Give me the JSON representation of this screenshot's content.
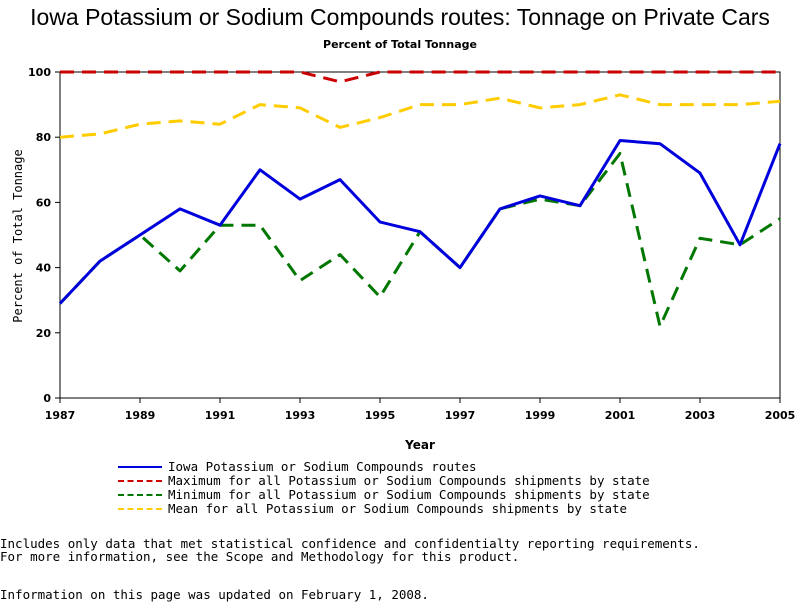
{
  "chart_data": {
    "type": "line",
    "title": "Iowa Potassium or Sodium Compounds routes: Tonnage on Private Cars",
    "subtitle": "Percent of Total Tonnage",
    "xlabel": "Year",
    "ylabel": "Percent of Total Tonnage",
    "xlim": [
      1987,
      2005
    ],
    "ylim": [
      0,
      100
    ],
    "x_ticks": [
      "1987",
      "1989",
      "1991",
      "1993",
      "1995",
      "1997",
      "1999",
      "2001",
      "2003",
      "2005"
    ],
    "y_ticks": [
      "0",
      "20",
      "40",
      "60",
      "80",
      "100"
    ],
    "x": [
      1987,
      1988,
      1989,
      1990,
      1991,
      1992,
      1993,
      1994,
      1995,
      1996,
      1997,
      1998,
      1999,
      2000,
      2001,
      2002,
      2003,
      2004,
      2005
    ],
    "series": [
      {
        "name": "Iowa Potassium or Sodium Compounds routes",
        "color": "#0000dd",
        "style": "solid",
        "values": [
          29,
          42,
          50,
          58,
          53,
          70,
          61,
          67,
          54,
          51,
          40,
          58,
          62,
          59,
          79,
          78,
          69,
          47,
          78
        ]
      },
      {
        "name": "Maximum for all Potassium or Sodium Compounds shipments by state",
        "color": "#cc0000",
        "style": "dashed",
        "values": [
          100,
          100,
          100,
          100,
          100,
          100,
          100,
          97,
          100,
          100,
          100,
          100,
          100,
          100,
          100,
          100,
          100,
          100,
          100
        ]
      },
      {
        "name": "Minimum for all Potassium or Sodium Compounds shipments by state",
        "color": "#007700",
        "style": "dashed",
        "values": [
          29,
          42,
          50,
          39,
          53,
          53,
          36,
          44,
          31,
          51,
          40,
          58,
          61,
          59,
          75,
          22,
          49,
          47,
          55
        ]
      },
      {
        "name": "Mean for all Potassium or Sodium Compounds shipments by state",
        "color": "#ffcc00",
        "style": "dashed",
        "values": [
          80,
          81,
          84,
          85,
          84,
          90,
          89,
          83,
          86,
          90,
          90,
          92,
          89,
          90,
          93,
          90,
          90,
          90,
          91
        ]
      }
    ],
    "grid": false,
    "legend_position": "bottom"
  },
  "footnotes": {
    "line1": "Includes only data that met statistical confidence and confidentialty reporting requirements.",
    "line2": "For more information, see the Scope and Methodology for this product.",
    "line3": "Information on this page was updated on February 1, 2008."
  }
}
